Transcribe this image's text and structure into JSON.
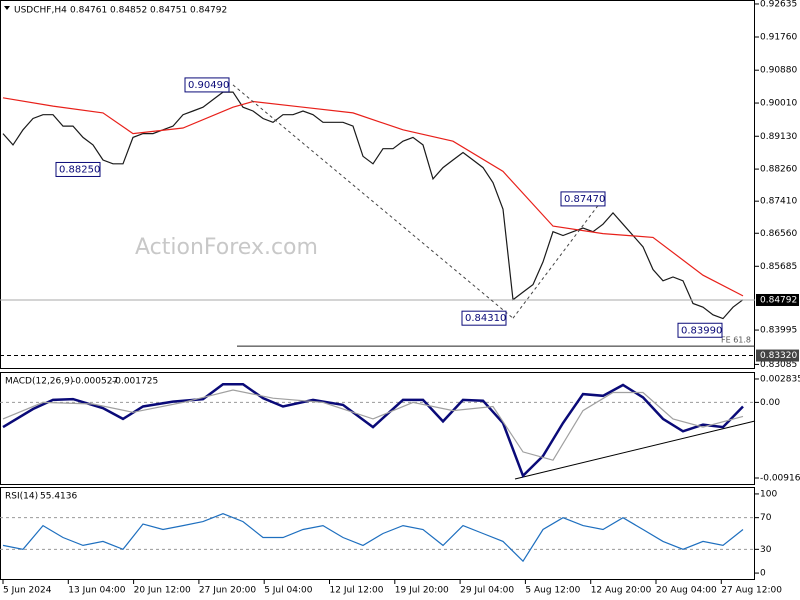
{
  "chart_data": [
    {
      "type": "line",
      "title": "USDCHF,H4",
      "ohlc": [
        0.84761,
        0.84852,
        0.84751,
        0.84792
      ],
      "watermark": "ActionForex.com",
      "xlim": [
        -0.3,
        75.2
      ],
      "ylim": [
        0.8299,
        0.9274
      ],
      "yticks": [
        0.92635,
        {
          "value": 0.9176,
          "label": "0.91760"
        },
        {
          "value": 0.9088,
          "label": "0.90880"
        },
        {
          "value": 0.9001,
          "label": "0.90010"
        },
        {
          "value": 0.8913,
          "label": "0.89130"
        },
        {
          "value": 0.8826,
          "label": "0.88260"
        },
        {
          "value": 0.8741,
          "label": "0.87410"
        },
        {
          "value": 0.8656,
          "label": "0.86560"
        },
        0.85685,
        0.83995,
        0.83085
      ],
      "support_level": {
        "value": 0.8332,
        "label": "0.83320"
      },
      "fe_level": 0.8357,
      "fe_label": "FE 61.8",
      "annotations": [
        {
          "value": 0.9049,
          "label": "0.90490"
        },
        {
          "value": 0.8825,
          "label": "0.88250"
        },
        {
          "value": 0.8431,
          "label": "0.84310"
        },
        {
          "value": 0.8747,
          "label": "0.87470"
        },
        {
          "value": 0.8399,
          "label": "0.83990"
        }
      ],
      "series": [
        {
          "color": "#1a1a1a",
          "x": [
            0,
            1,
            2,
            3,
            4,
            5,
            6,
            7,
            8,
            9,
            10,
            11,
            12,
            13,
            14,
            15,
            16,
            17,
            18,
            19,
            20,
            21,
            22,
            23,
            24,
            25,
            26,
            27,
            28,
            29,
            30,
            31,
            32,
            33,
            34,
            35,
            36,
            37,
            38,
            39,
            40,
            41,
            42,
            43,
            44,
            45,
            46,
            47,
            48,
            49,
            50,
            51,
            52,
            53,
            54,
            55,
            56,
            57,
            58,
            59,
            60,
            61,
            62,
            63,
            64,
            65,
            66,
            67,
            68,
            69,
            70,
            71,
            72,
            73,
            74
          ],
          "values": [
            0.892,
            0.889,
            0.893,
            0.896,
            0.897,
            0.897,
            0.894,
            0.894,
            0.891,
            0.889,
            0.885,
            0.884,
            0.884,
            0.891,
            0.892,
            0.892,
            0.893,
            0.894,
            0.897,
            0.898,
            0.899,
            0.901,
            0.903,
            0.903,
            0.899,
            0.898,
            0.896,
            0.895,
            0.897,
            0.897,
            0.898,
            0.897,
            0.895,
            0.895,
            0.895,
            0.894,
            0.886,
            0.884,
            0.888,
            0.888,
            0.89,
            0.891,
            0.889,
            0.88,
            0.883,
            0.885,
            0.887,
            0.885,
            0.883,
            0.879,
            0.872,
            0.848,
            0.85,
            0.852,
            0.858,
            0.866,
            0.865,
            0.866,
            0.867,
            0.866,
            0.868,
            0.871,
            0.868,
            0.865,
            0.862,
            0.856,
            0.853,
            0.854,
            0.853,
            0.847,
            0.846,
            0.844,
            0.843,
            0.846,
            0.848
          ]
        },
        {
          "color": "#e8201a",
          "x": [
            0,
            5,
            10,
            13,
            18,
            23,
            25,
            30,
            35,
            40,
            45,
            50,
            55,
            60,
            65,
            70,
            74
          ],
          "values": [
            0.9015,
            0.8993,
            0.8975,
            0.892,
            0.8935,
            0.899,
            0.9005,
            0.899,
            0.8975,
            0.893,
            0.89,
            0.882,
            0.8675,
            0.8655,
            0.8645,
            0.8545,
            0.849
          ]
        }
      ]
    },
    {
      "type": "line",
      "title": "MACD(12,26,9)",
      "readings": [
        -0.000527,
        -0.001725
      ],
      "xlim": [
        -0.3,
        75.2
      ],
      "ylim": [
        -0.01001,
        0.00368
      ],
      "yticks": [
        0.002835,
        {
          "value": 0,
          "label": "0.00"
        },
        -0.009161
      ],
      "series": [
        {
          "color": "#0a0a78",
          "x": [
            0,
            3,
            5,
            7,
            10,
            12,
            14,
            17,
            20,
            22,
            24,
            26,
            28,
            31,
            34,
            37,
            40,
            42,
            44,
            46,
            48,
            50,
            52,
            54,
            56,
            58,
            60,
            62,
            64,
            66,
            68,
            70,
            72,
            74
          ],
          "values": [
            -0.003,
            -0.0008,
            0.0003,
            0.0004,
            -0.0007,
            -0.002,
            -0.0005,
            0.0001,
            0.0004,
            0.0022,
            0.0022,
            0.0005,
            -0.0005,
            0.0003,
            -0.0003,
            -0.003,
            0.0003,
            0.0003,
            -0.0023,
            0.0003,
            0.0002,
            -0.0025,
            -0.0089,
            -0.0065,
            -0.0025,
            0.001,
            0.0008,
            0.0021,
            0.0006,
            -0.002,
            -0.0035,
            -0.0027,
            -0.003,
            -0.0005
          ]
        },
        {
          "color": "#a0a0a0",
          "x": [
            0,
            4,
            9,
            13,
            18,
            23,
            27,
            32,
            37,
            41,
            45,
            49,
            52,
            55,
            58,
            61,
            64,
            67,
            70,
            74
          ],
          "values": [
            -0.002,
            0,
            -0.0002,
            -0.0012,
            0,
            0.0015,
            0.0005,
            0,
            -0.002,
            0,
            -0.001,
            -0.0005,
            -0.006,
            -0.007,
            -0.001,
            0.0012,
            0.0012,
            -0.002,
            -0.003,
            -0.0017
          ]
        }
      ]
    },
    {
      "type": "line",
      "title": "RSI(14)",
      "readings": [
        55.4136
      ],
      "xlim": [
        -0.3,
        75.2
      ],
      "ylim": [
        -8.75,
        108.75
      ],
      "yticks": [
        100,
        70,
        30,
        0
      ],
      "xtick_labels": [
        "5 Jun 2024",
        "13 Jun 04:00",
        "20 Jun 12:00",
        "27 Jun 20:00",
        "5 Jul 04:00",
        "12 Jul 12:00",
        "19 Jul 20:00",
        "29 Jul 04:00",
        "5 Aug 12:00",
        "12 Aug 20:00",
        "20 Aug 04:00",
        "27 Aug 12:00"
      ],
      "series": [
        {
          "color": "#1e6fbf",
          "x": [
            0,
            2,
            4,
            6,
            8,
            10,
            12,
            14,
            16,
            18,
            20,
            22,
            24,
            26,
            28,
            30,
            32,
            34,
            36,
            38,
            40,
            42,
            44,
            46,
            48,
            50,
            52,
            54,
            56,
            58,
            60,
            62,
            64,
            66,
            68,
            70,
            72,
            74
          ],
          "values": [
            35,
            30,
            60,
            45,
            35,
            40,
            30,
            62,
            55,
            60,
            65,
            75,
            65,
            45,
            45,
            55,
            60,
            45,
            35,
            50,
            60,
            55,
            35,
            60,
            50,
            40,
            15,
            55,
            70,
            60,
            55,
            70,
            55,
            40,
            30,
            40,
            35,
            55
          ]
        }
      ]
    }
  ]
}
